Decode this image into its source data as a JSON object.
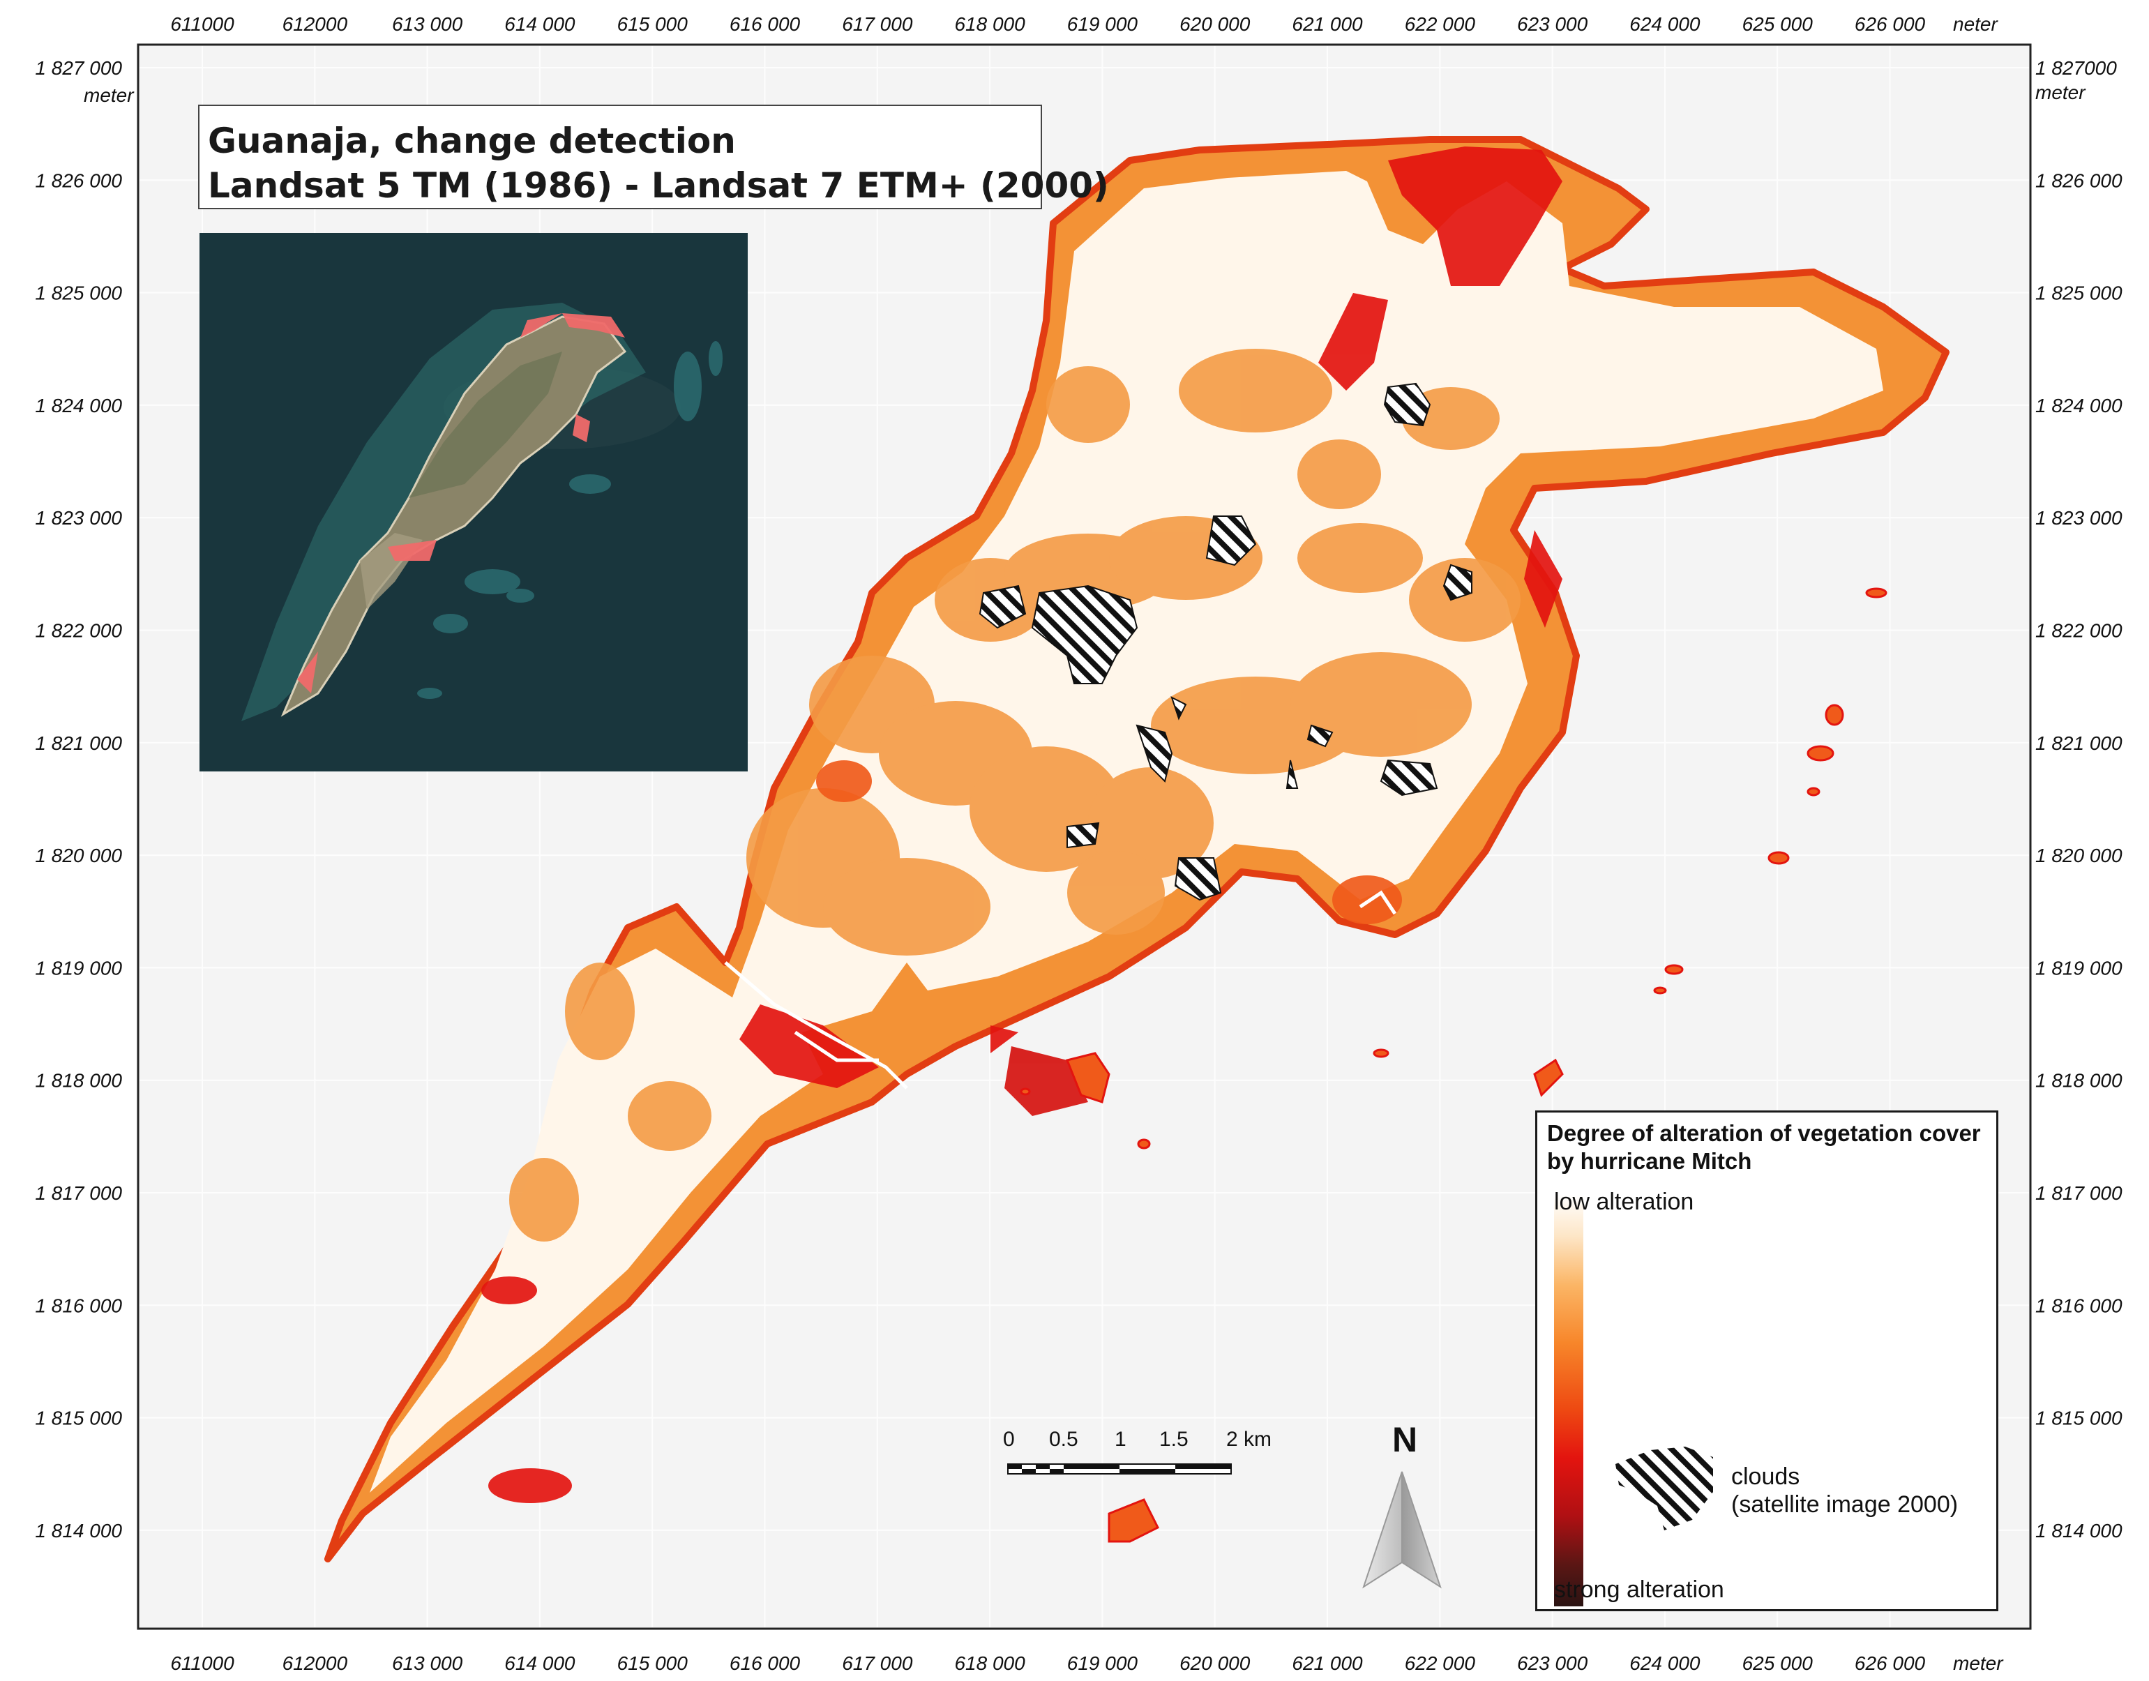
{
  "title": {
    "line1": "Guanaja, change detection",
    "line2": "Landsat 5 TM (1986) - Landsat 7 ETM+ (2000)"
  },
  "axes": {
    "x_ticks": [
      "611000",
      "612000",
      "613 000",
      "614 000",
      "615 000",
      "616 000",
      "617 000",
      "618 000",
      "619 000",
      "620 000",
      "621 000",
      "622 000",
      "623 000",
      "624 000",
      "625 000",
      "626 000"
    ],
    "x_unit_top": "neter",
    "x_unit_bottom": "meter",
    "y_ticks": [
      "1 827 000",
      "1 826 000",
      "1 825 000",
      "1 824 000",
      "1 823 000",
      "1 822 000",
      "1 821 000",
      "1 820 000",
      "1 819 000",
      "1 818 000",
      "1 817 000",
      "1 816 000",
      "1 815 000",
      "1 814 000"
    ],
    "y_ticks_right": [
      "1 827000",
      "1 826 000",
      "1 825 000",
      "1 824 000",
      "1 823 000",
      "1 822 000",
      "1 821 000",
      "1 820 000",
      "1 819 000",
      "1 818 000",
      "1 817 000",
      "1 816 000",
      "1 815 000",
      "1 814 000"
    ],
    "y_unit": "meter"
  },
  "legend": {
    "title": "Degree of alteration of vegetation cover by hurricane Mitch",
    "low": "low alteration",
    "strong": "strong alteration",
    "clouds_line1": "clouds",
    "clouds_line2": "(satellite image 2000)",
    "ramp_colors": [
      "#ffffff",
      "#fbb565",
      "#ee4a12",
      "#e3140f",
      "#b01013",
      "#2b1413"
    ]
  },
  "scalebar": {
    "labels": [
      "0",
      "0.5",
      "1",
      "1.5",
      "2 km"
    ]
  },
  "north_arrow": {
    "label": "N"
  },
  "colors": {
    "map_background": "#f4f4f4",
    "low_alteration": "#fff6ea",
    "moderate_alteration": "#f7862a",
    "high_alteration": "#e3140f",
    "strong_alteration": "#2b1413"
  }
}
